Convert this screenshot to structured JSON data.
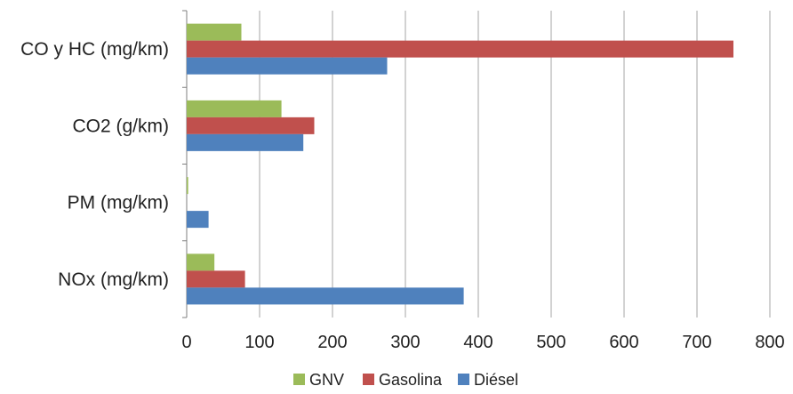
{
  "chart_data": {
    "type": "bar",
    "orientation": "horizontal",
    "categories": [
      "CO y HC (mg/km)",
      "CO2 (g/km)",
      "PM (mg/km)",
      "NOx (mg/km)"
    ],
    "series": [
      {
        "name": "GNV",
        "color": "#9BBB59",
        "values": [
          75,
          130,
          2,
          38
        ]
      },
      {
        "name": "Gasolina",
        "color": "#C0504D",
        "values": [
          750,
          175,
          0,
          80
        ]
      },
      {
        "name": "Diésel",
        "color": "#4F81BD",
        "values": [
          275,
          160,
          30,
          380
        ]
      }
    ],
    "x_ticks": [
      0,
      100,
      200,
      300,
      400,
      500,
      600,
      700,
      800
    ],
    "xlim": [
      0,
      800
    ],
    "grid": "vertical",
    "legend_position": "bottom"
  }
}
